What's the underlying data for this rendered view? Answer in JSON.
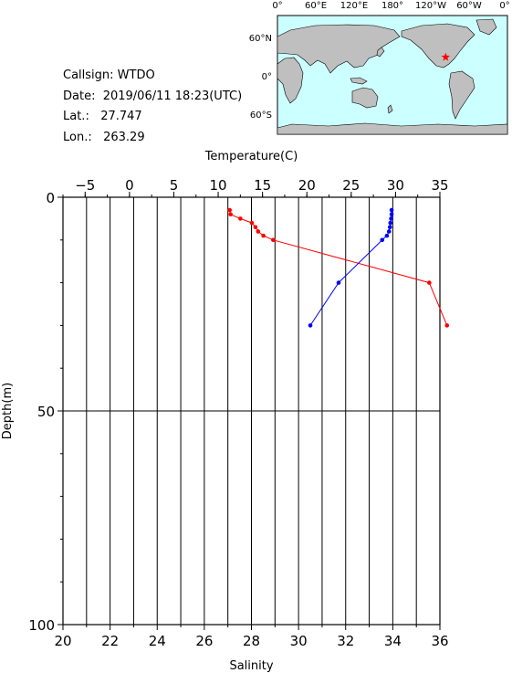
{
  "info": {
    "callsign": "Callsign: WTDO",
    "date": "Date:  2019/06/11 18:23(UTC)",
    "lat": "Lat.:   27.747",
    "lon": "Lon.:   263.29"
  },
  "map": {
    "top_labels": [
      "0°",
      "60°E",
      "120°E",
      "180°",
      "120°W",
      "60°W",
      "0°"
    ],
    "left_labels": [
      "60°N",
      "0°",
      "60°S"
    ],
    "ocean_color": "#ccffff",
    "land_color": "#bfbfbf",
    "marker_color": "#ff0000",
    "marker": "red-star"
  },
  "chart_data": {
    "type": "line",
    "top_axis_label": "Temperature(C)",
    "bottom_axis_label": "Salinity",
    "left_axis_label": "Depth(m)",
    "temperature_range": [
      -7.5,
      35
    ],
    "temperature_ticks": [
      -5,
      0,
      5,
      10,
      15,
      20,
      25,
      30,
      35
    ],
    "salinity_range": [
      20,
      36
    ],
    "salinity_ticks": [
      20,
      22,
      24,
      26,
      28,
      30,
      32,
      34,
      36
    ],
    "depth_range": [
      0,
      100
    ],
    "depth_ticks": [
      0,
      50,
      100
    ],
    "grid": true,
    "series": [
      {
        "axis": "temperature",
        "color": "#ff0000",
        "points": [
          {
            "x": 11.3,
            "y": 3
          },
          {
            "x": 11.4,
            "y": 4
          },
          {
            "x": 12.5,
            "y": 5
          },
          {
            "x": 13.8,
            "y": 6
          },
          {
            "x": 14.2,
            "y": 7
          },
          {
            "x": 14.5,
            "y": 8
          },
          {
            "x": 15.1,
            "y": 9
          },
          {
            "x": 16.2,
            "y": 10
          },
          {
            "x": 33.8,
            "y": 20
          },
          {
            "x": 35.8,
            "y": 30
          }
        ]
      },
      {
        "axis": "salinity",
        "color": "#0000ff",
        "points": [
          {
            "x": 33.95,
            "y": 3
          },
          {
            "x": 33.95,
            "y": 4
          },
          {
            "x": 33.93,
            "y": 5
          },
          {
            "x": 33.9,
            "y": 6
          },
          {
            "x": 33.88,
            "y": 7
          },
          {
            "x": 33.84,
            "y": 8
          },
          {
            "x": 33.75,
            "y": 9
          },
          {
            "x": 33.55,
            "y": 10
          },
          {
            "x": 31.7,
            "y": 20
          },
          {
            "x": 30.5,
            "y": 30
          }
        ]
      }
    ]
  }
}
